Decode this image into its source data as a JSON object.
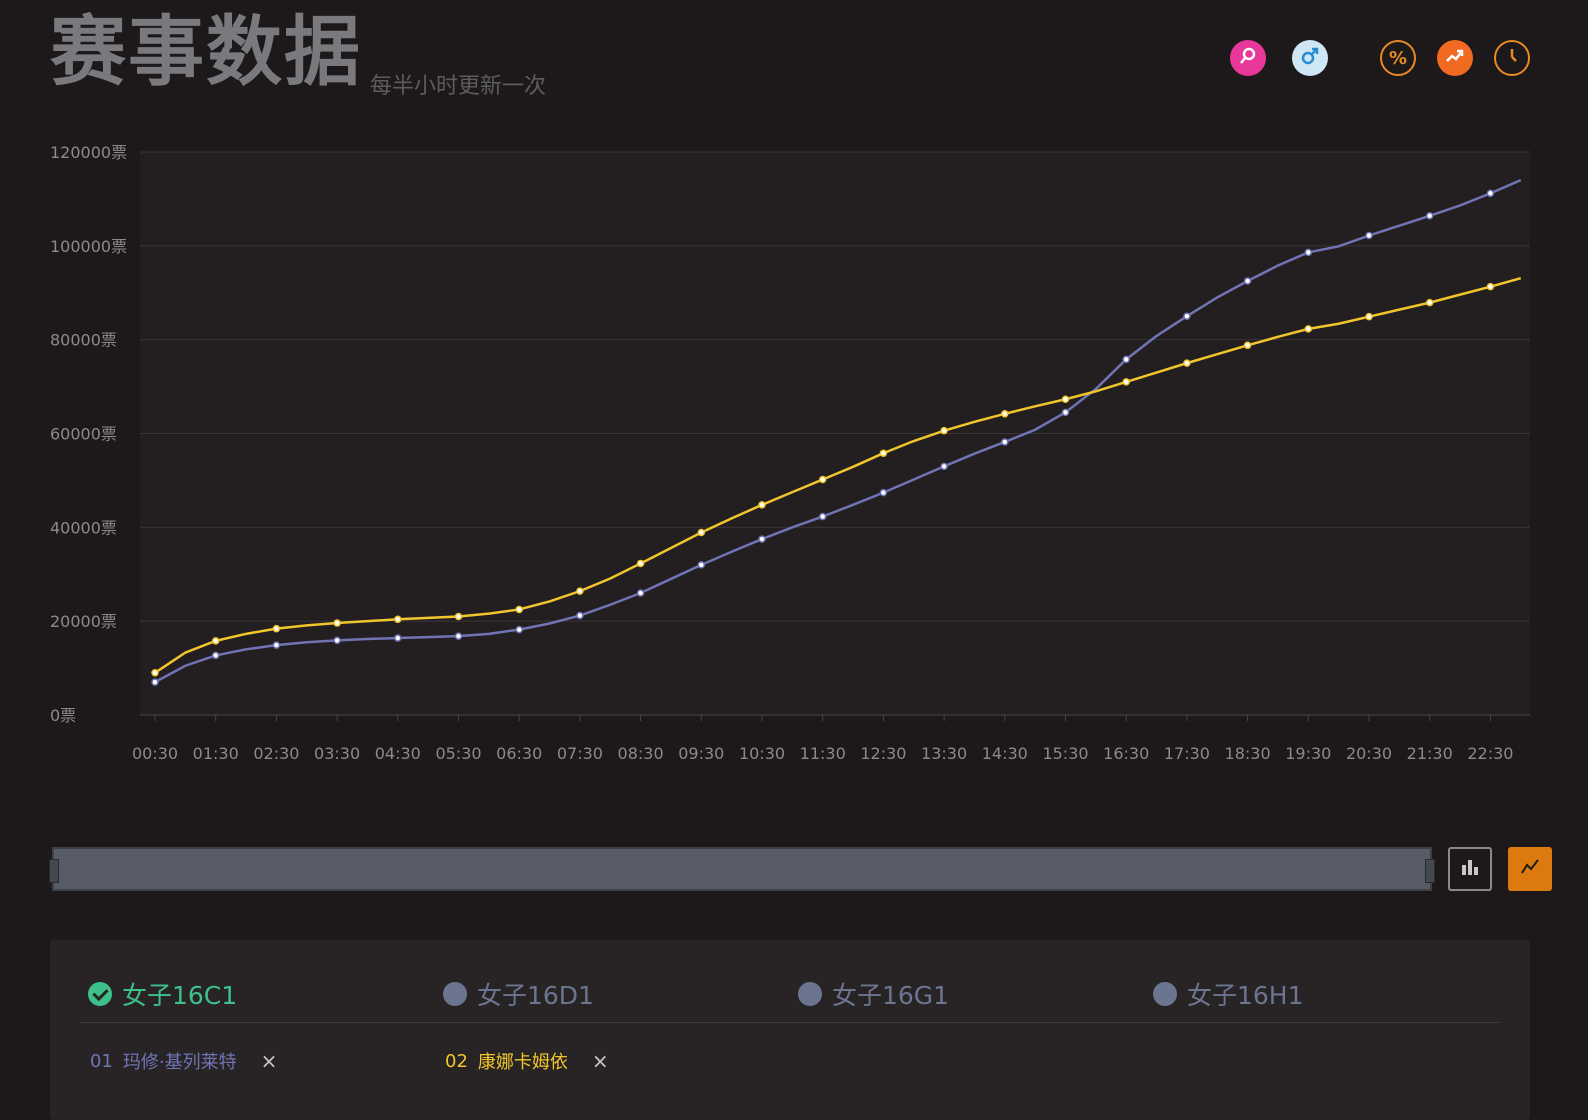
{
  "header": {
    "title": "赛事数据",
    "subtitle": "每半小时更新一次"
  },
  "toolbar": {
    "icons": [
      {
        "name": "female-icon",
        "glyph": "⚲",
        "bg": "#e8399b",
        "fg": "#ffffff"
      },
      {
        "name": "male-icon",
        "glyph": "♂",
        "bg": "#cfe7f5",
        "fg": "#2a8cd0"
      },
      {
        "name": "percent-icon",
        "glyph": "%",
        "bg": "transparent",
        "fg": "#e88a22"
      },
      {
        "name": "trend-icon",
        "glyph": "↗",
        "bg": "#f06a22",
        "fg": "#ffffff"
      },
      {
        "name": "clock-icon",
        "glyph": "◷",
        "bg": "transparent",
        "fg": "#e88a22"
      }
    ]
  },
  "chart_data": {
    "type": "line",
    "y_tick_labels": [
      "0票",
      "20000票",
      "40000票",
      "60000票",
      "80000票",
      "100000票",
      "120000票"
    ],
    "ylim": [
      0,
      120000
    ],
    "x_tick_labels": [
      "00:30",
      "01:30",
      "02:30",
      "03:30",
      "04:30",
      "05:30",
      "06:30",
      "07:30",
      "08:30",
      "09:30",
      "10:30",
      "11:30",
      "12:30",
      "13:30",
      "14:30",
      "15:30",
      "16:30",
      "17:30",
      "18:30",
      "19:30",
      "20:30",
      "21:30",
      "22:30"
    ],
    "x": [
      "00:30",
      "01:00",
      "01:30",
      "02:00",
      "02:30",
      "03:00",
      "03:30",
      "04:00",
      "04:30",
      "05:00",
      "05:30",
      "06:00",
      "06:30",
      "07:00",
      "07:30",
      "08:00",
      "08:30",
      "09:00",
      "09:30",
      "10:00",
      "10:30",
      "11:00",
      "11:30",
      "12:00",
      "12:30",
      "13:00",
      "13:30",
      "14:00",
      "14:30",
      "15:00",
      "15:30",
      "16:00",
      "16:30",
      "17:00",
      "17:30",
      "18:00",
      "18:30",
      "19:00",
      "19:30",
      "20:00",
      "20:30",
      "21:00",
      "21:30",
      "22:00",
      "22:30",
      "23:00"
    ],
    "series": [
      {
        "name": "玛修·基列莱特",
        "color": "#7074b5",
        "values": [
          7000,
          10500,
          12700,
          14000,
          14900,
          15500,
          15900,
          16200,
          16400,
          16600,
          16800,
          17300,
          18200,
          19500,
          21200,
          23500,
          26000,
          29000,
          32000,
          34800,
          37500,
          40000,
          42300,
          44800,
          47400,
          50200,
          53000,
          55700,
          58200,
          60800,
          64500,
          69500,
          75800,
          80800,
          85000,
          89000,
          92500,
          95800,
          98600,
          99900,
          102200,
          104300,
          106400,
          108600,
          111200,
          114000
        ]
      },
      {
        "name": "康娜卡姆依",
        "color": "#f1c62c",
        "values": [
          9000,
          13300,
          15800,
          17300,
          18400,
          19100,
          19600,
          20000,
          20400,
          20700,
          21000,
          21600,
          22500,
          24200,
          26400,
          29100,
          32300,
          35600,
          38900,
          41900,
          44800,
          47500,
          50200,
          52900,
          55800,
          58400,
          60600,
          62500,
          64200,
          65800,
          67300,
          69000,
          71000,
          73000,
          75000,
          76900,
          78800,
          80600,
          82300,
          83400,
          84900,
          86400,
          87900,
          89600,
          91300,
          93100
        ]
      }
    ],
    "grid": true,
    "legend": "none"
  },
  "chart_types": [
    {
      "name": "bar-chart-icon",
      "glyph": "▮▮▮"
    },
    {
      "name": "line-chart-icon",
      "glyph": "⌇"
    }
  ],
  "groups": {
    "tabs": [
      {
        "label": "女子16C1",
        "active": true
      },
      {
        "label": "女子16D1",
        "active": false
      },
      {
        "label": "女子16G1",
        "active": false
      },
      {
        "label": "女子16H1",
        "active": false
      }
    ],
    "players": [
      {
        "rank": "01",
        "name": "玛修·基列莱特",
        "color": "#7074b5",
        "close": "×"
      },
      {
        "rank": "02",
        "name": "康娜卡姆依",
        "color": "#f1c62c",
        "close": "×"
      }
    ]
  }
}
